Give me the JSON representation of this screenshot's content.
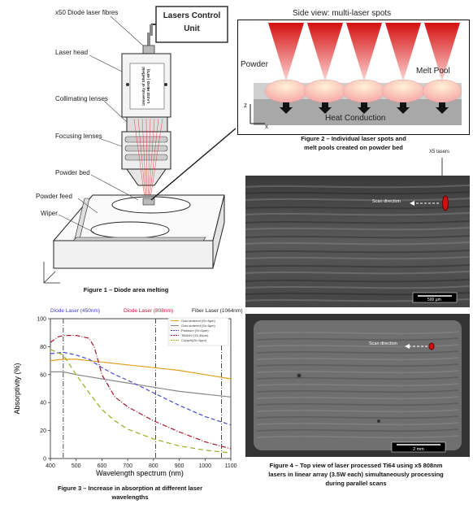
{
  "fig1": {
    "labels": {
      "fibres": "x50 Diode laser fibres",
      "control": "Lasers Control Unit",
      "head": "Laser head",
      "collimating": "Collimating lenses",
      "focusing": "Focusing lenses",
      "bed": "Powder bed",
      "feed": "Powder feed",
      "wiper": "Wiper",
      "head_plate": "University of Sheffield LA332 HEAD ( 65*2)"
    },
    "caption": "Figure 1 – Diode area melting"
  },
  "fig2": {
    "title": "Side view: multi-laser spots",
    "powder": "Powder",
    "meltpool": "Melt Pool",
    "heat": "Heat Conduction",
    "axis_z": "z",
    "axis_x": "x",
    "caption_line1": "Figure 2 – Individual laser spots and",
    "caption_line2": "melt pools created on powder bed"
  },
  "fig3": {
    "caption_line1": "Figure 3 – Increase in absorption at different laser",
    "caption_line2": "wavelengths",
    "band_labels": {
      "diode450": "Diode Laser (450nm)",
      "diode808": "Diode Laser (808nm)",
      "fiber1064": "Fiber Laser (1064nm)"
    },
    "colors": {
      "blue": "#3b3bd0",
      "red": "#c0143c",
      "black": "#222222"
    }
  },
  "fig4": {
    "x5": "X5 lasers",
    "scan1": "Scan direction",
    "scale1": "500 µm",
    "scan2": "Scan direction",
    "scale2": "2 mm",
    "caption_line1": "Figure 4 – Top view of laser processed Ti64 using x5 808nm",
    "caption_line2": "lasers in linear array  (3.5W each) simultaneously processing",
    "caption_line3": "during parallel scans"
  },
  "chart_data": {
    "type": "line",
    "xlabel": "Wavelength spectrum (nm)",
    "ylabel": "Absorptivity (%)",
    "xlim": [
      400,
      1100
    ],
    "ylim": [
      0,
      100
    ],
    "xticks": [
      "400",
      "500",
      "600",
      "700",
      "800",
      "900",
      "1000",
      "1100"
    ],
    "yticks": [
      "0",
      "20",
      "40",
      "60",
      "80",
      "100"
    ],
    "vlines": [
      450,
      808,
      1064
    ],
    "legend_position": "top-right",
    "series": [
      {
        "name": "Gold sintered (Sr=5μm)",
        "color": "#e0a020",
        "dash": "",
        "x": [
          400,
          450,
          500,
          600,
          700,
          800,
          900,
          1000,
          1100
        ],
        "y": [
          70,
          71,
          71,
          69,
          67,
          65,
          63,
          60,
          57
        ]
      },
      {
        "name": "Gold sintered (Sr=5μm)",
        "color": "#888888",
        "dash": "",
        "x": [
          400,
          450,
          500,
          600,
          700,
          800,
          900,
          1000,
          1100
        ],
        "y": [
          62,
          62,
          60,
          57,
          54,
          51,
          48,
          46,
          44
        ]
      },
      {
        "name": "Platinum (Sr=5μm)",
        "color": "#4a4ad0",
        "dash": "5,3",
        "x": [
          400,
          450,
          500,
          550,
          600,
          650,
          700,
          800,
          900,
          1000,
          1100
        ],
        "y": [
          75,
          76,
          74,
          71,
          65,
          60,
          56,
          47,
          38,
          30,
          24
        ]
      },
      {
        "name": "Ti6Al4V (15-45μm)",
        "color": "#a01830",
        "dash": "6,2,1,2",
        "x": [
          400,
          430,
          450,
          500,
          550,
          570,
          600,
          650,
          700,
          800,
          900,
          1000,
          1100
        ],
        "y": [
          83,
          87,
          88,
          88,
          86,
          80,
          60,
          44,
          37,
          27,
          19,
          12,
          7
        ]
      },
      {
        "name": "Cu(sph)(Sr=5μm)",
        "color": "#9aaa20",
        "dash": "6,4",
        "x": [
          400,
          450,
          500,
          550,
          600,
          650,
          700,
          800,
          900,
          1000,
          1100
        ],
        "y": [
          78,
          74,
          60,
          47,
          35,
          27,
          21,
          14,
          9,
          6,
          4
        ]
      }
    ]
  }
}
